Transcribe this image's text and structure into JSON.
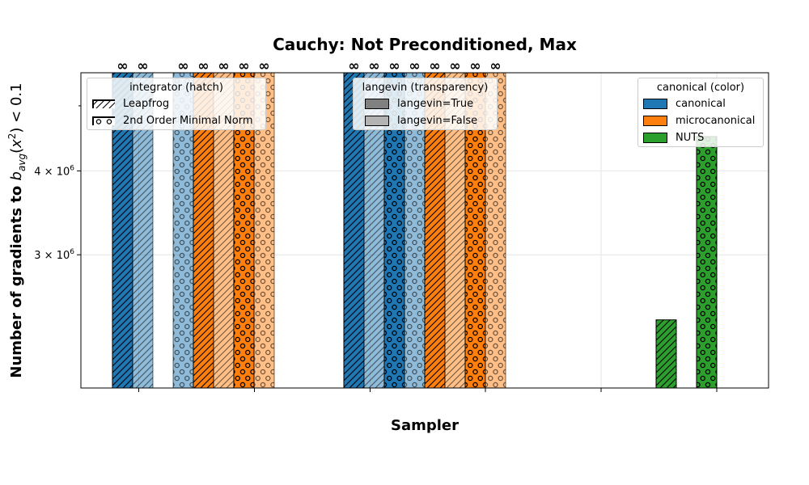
{
  "chart_data": {
    "type": "bar",
    "title": "Cauchy: Not Preconditioned, Max",
    "xlabel": "Sampler",
    "ylabel": "Number of gradients to $b_{avg}(x^2) < 0.1$",
    "yscale": "log",
    "ylim": [
      1900000,
      5600000
    ],
    "yticks": [
      {
        "value": 3000000,
        "label": "3 × 10^6"
      },
      {
        "value": 4000000,
        "label": "4 × 10^6"
      }
    ],
    "grid": true,
    "infinity_symbol": "∞",
    "colors": {
      "canonical": "#1f77b4",
      "microcanonical": "#ff7f0e",
      "NUTS": "#2ca02c"
    },
    "bars": [
      {
        "group": 0,
        "color": "canonical",
        "langevin": true,
        "hatch": "Leapfrog",
        "value": null,
        "infinite": true
      },
      {
        "group": 0,
        "color": "canonical",
        "langevin": false,
        "hatch": "Leapfrog",
        "value": null,
        "infinite": true
      },
      {
        "group": 0,
        "color": "canonical",
        "langevin": false,
        "hatch": "2nd Order Minimal Norm",
        "value": null,
        "infinite": true
      },
      {
        "group": 0,
        "color": "microcanonical",
        "langevin": true,
        "hatch": "Leapfrog",
        "value": null,
        "infinite": true
      },
      {
        "group": 0,
        "color": "microcanonical",
        "langevin": false,
        "hatch": "Leapfrog",
        "value": null,
        "infinite": true
      },
      {
        "group": 0,
        "color": "microcanonical",
        "langevin": true,
        "hatch": "2nd Order Minimal Norm",
        "value": null,
        "infinite": true
      },
      {
        "group": 0,
        "color": "microcanonical",
        "langevin": false,
        "hatch": "2nd Order Minimal Norm",
        "value": null,
        "infinite": true
      },
      {
        "group": 1,
        "color": "canonical",
        "langevin": true,
        "hatch": "Leapfrog",
        "value": null,
        "infinite": true
      },
      {
        "group": 1,
        "color": "canonical",
        "langevin": false,
        "hatch": "Leapfrog",
        "value": null,
        "infinite": true
      },
      {
        "group": 1,
        "color": "canonical",
        "langevin": true,
        "hatch": "2nd Order Minimal Norm",
        "value": null,
        "infinite": true
      },
      {
        "group": 1,
        "color": "canonical",
        "langevin": false,
        "hatch": "2nd Order Minimal Norm",
        "value": null,
        "infinite": true
      },
      {
        "group": 1,
        "color": "microcanonical",
        "langevin": true,
        "hatch": "Leapfrog",
        "value": null,
        "infinite": true
      },
      {
        "group": 1,
        "color": "microcanonical",
        "langevin": false,
        "hatch": "Leapfrog",
        "value": null,
        "infinite": true
      },
      {
        "group": 1,
        "color": "microcanonical",
        "langevin": true,
        "hatch": "2nd Order Minimal Norm",
        "value": null,
        "infinite": true
      },
      {
        "group": 1,
        "color": "microcanonical",
        "langevin": false,
        "hatch": "2nd Order Minimal Norm",
        "value": null,
        "infinite": true
      },
      {
        "group": 2,
        "color": "NUTS",
        "langevin": true,
        "hatch": "Leapfrog",
        "value": 2400000,
        "infinite": false
      },
      {
        "group": 2,
        "color": "NUTS",
        "langevin": true,
        "hatch": "2nd Order Minimal Norm",
        "value": 4500000,
        "infinite": false
      }
    ],
    "legends": {
      "integrator": {
        "title": "integrator (hatch)",
        "entries": [
          {
            "label": "Leapfrog",
            "hatch": "Leapfrog"
          },
          {
            "label": "2nd Order Minimal Norm",
            "hatch": "2nd Order Minimal Norm"
          }
        ]
      },
      "langevin": {
        "title": "langevin (transparency)",
        "entries": [
          {
            "label": "langevin=True",
            "color": "#808080"
          },
          {
            "label": "langevin=False",
            "color": "#b3b3b3"
          }
        ]
      },
      "canonical": {
        "title": "canonical (color)",
        "entries": [
          {
            "label": "canonical",
            "color": "#1f77b4"
          },
          {
            "label": "microcanonical",
            "color": "#ff7f0e"
          },
          {
            "label": "NUTS",
            "color": "#2ca02c"
          }
        ]
      }
    }
  }
}
